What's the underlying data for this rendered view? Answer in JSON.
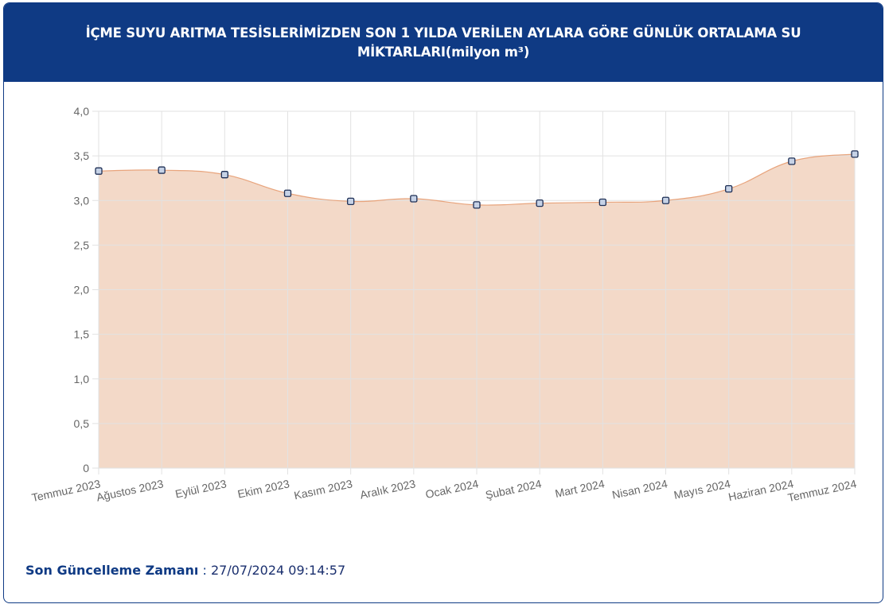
{
  "header": {
    "title": "İÇME SUYU ARITMA TESİSLERİMİZDEN SON 1 YILDA VERİLEN AYLARA GÖRE GÜNLÜK ORTALAMA SU MİKTARLARI(milyon m³)"
  },
  "footer": {
    "label": "Son Güncelleme Zamanı",
    "separator": " : ",
    "value": "27/07/2024 09:14:57"
  },
  "colors": {
    "header_bg": "#0f3a84",
    "area_fill": "#f3d9c8",
    "line": "#e8a47c",
    "point_fill": "#c6d2e6",
    "point_stroke": "#1e2f55",
    "grid": "#e2e2e2"
  },
  "chart_data": {
    "type": "area",
    "categories": [
      "Temmuz 2023",
      "Ağustos 2023",
      "Eylül 2023",
      "Ekim 2023",
      "Kasım 2023",
      "Aralık 2023",
      "Ocak 2024",
      "Şubat 2024",
      "Mart 2024",
      "Nisan 2024",
      "Mayıs 2024",
      "Haziran 2024",
      "Temmuz 2024"
    ],
    "values": [
      3.33,
      3.34,
      3.29,
      3.08,
      2.99,
      3.02,
      2.95,
      2.97,
      2.98,
      3.0,
      3.13,
      3.44,
      3.52
    ],
    "ylim": [
      0,
      4.0
    ],
    "yticks": [
      "0",
      "0,5",
      "1,0",
      "1,5",
      "2,0",
      "2,5",
      "3,0",
      "3,5",
      "4,0"
    ],
    "ytick_values": [
      0,
      0.5,
      1.0,
      1.5,
      2.0,
      2.5,
      3.0,
      3.5,
      4.0
    ],
    "grid": true,
    "xlabel": "",
    "ylabel": ""
  }
}
